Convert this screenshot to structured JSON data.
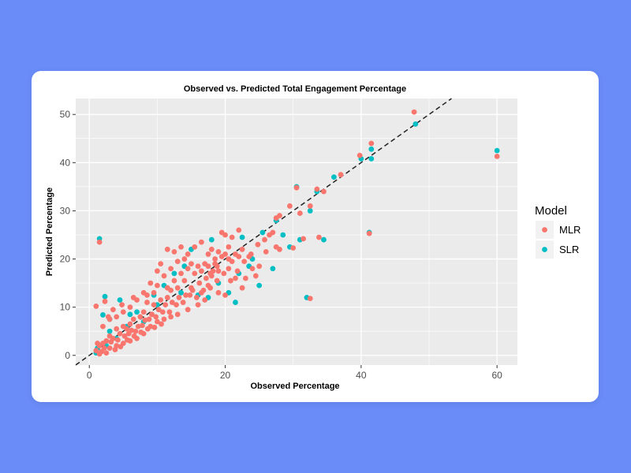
{
  "colors": {
    "page_background": "#6a8cf8",
    "card_background": "#ffffff",
    "panel_background": "#ebebeb",
    "grid": "#ffffff",
    "mlr": "#f8766d",
    "slr": "#00bfc4",
    "reference_line": "#222222"
  },
  "chart_data": {
    "type": "scatter",
    "title": "Observed vs. Predicted Total Engagement Percentage",
    "xlabel": "Observed Percentage",
    "ylabel": "Predicted Percentage",
    "xlim": [
      -2,
      63
    ],
    "ylim": [
      -2,
      53.3
    ],
    "x_ticks": [
      0,
      20,
      40,
      60
    ],
    "y_ticks": [
      0,
      10,
      20,
      30,
      40,
      50
    ],
    "grid": true,
    "legend_placement": "right",
    "legend_title": "Model",
    "reference_line": {
      "style": "dashed",
      "from": [
        -2,
        -2
      ],
      "to": [
        53.3,
        53.3
      ]
    },
    "series": [
      {
        "name": "SLR",
        "color": "#00bfc4",
        "points": [
          [
            1.5,
            24.2
          ],
          [
            2.3,
            12.2
          ],
          [
            4.5,
            11.5
          ],
          [
            1.2,
            1.5
          ],
          [
            2.0,
            8.4
          ],
          [
            3.0,
            7.5
          ],
          [
            5.5,
            6.0
          ],
          [
            7.0,
            9.0
          ],
          [
            9.5,
            12.5
          ],
          [
            11.0,
            14.5
          ],
          [
            13.5,
            13.0
          ],
          [
            16.0,
            12.5
          ],
          [
            17.5,
            12.0
          ],
          [
            19.0,
            15.0
          ],
          [
            20.5,
            13.0
          ],
          [
            21.5,
            11.0
          ],
          [
            22.0,
            17.0
          ],
          [
            23.5,
            18.5
          ],
          [
            25.0,
            14.5
          ],
          [
            25.5,
            25.5
          ],
          [
            27.5,
            28.0
          ],
          [
            28.5,
            25.0
          ],
          [
            30.5,
            35.0
          ],
          [
            31.0,
            24.0
          ],
          [
            32.5,
            30.0
          ],
          [
            33.5,
            34.0
          ],
          [
            34.5,
            24.0
          ],
          [
            36.0,
            37.0
          ],
          [
            40.0,
            40.8
          ],
          [
            41.5,
            42.8
          ],
          [
            41.5,
            40.8
          ],
          [
            41.2,
            25.5
          ],
          [
            60.0,
            42.5
          ],
          [
            48.0,
            48.0
          ],
          [
            18.0,
            24.0
          ],
          [
            15.0,
            22.0
          ],
          [
            12.5,
            17.0
          ],
          [
            10.0,
            10.5
          ],
          [
            8.0,
            7.0
          ],
          [
            6.0,
            8.5
          ],
          [
            4.0,
            3.5
          ],
          [
            3.0,
            5.0
          ],
          [
            2.5,
            2.0
          ],
          [
            1.0,
            0.5
          ],
          [
            29.5,
            22.5
          ],
          [
            27.0,
            18.0
          ],
          [
            24.0,
            20.0
          ],
          [
            22.5,
            24.5
          ],
          [
            32.0,
            12.0
          ],
          [
            14.0,
            18.5
          ]
        ]
      },
      {
        "name": "MLR",
        "color": "#f8766d",
        "points": [
          [
            1.5,
            23.5
          ],
          [
            2.3,
            11.2
          ],
          [
            1.0,
            10.2
          ],
          [
            47.8,
            50.5
          ],
          [
            60.0,
            41.3
          ],
          [
            41.2,
            25.3
          ],
          [
            41.5,
            44.0
          ],
          [
            39.8,
            41.5
          ],
          [
            30.5,
            34.8
          ],
          [
            32.5,
            31.0
          ],
          [
            33.5,
            34.5
          ],
          [
            34.5,
            34.0
          ],
          [
            37.0,
            37.5
          ],
          [
            31.0,
            29.5
          ],
          [
            29.5,
            31.0
          ],
          [
            30.0,
            22.3
          ],
          [
            31.5,
            24.2
          ],
          [
            33.8,
            24.5
          ],
          [
            28.0,
            29.0
          ],
          [
            27.5,
            28.5
          ],
          [
            26.5,
            25.0
          ],
          [
            27.0,
            25.5
          ],
          [
            25.0,
            18.5
          ],
          [
            23.5,
            20.5
          ],
          [
            22.0,
            26.0
          ],
          [
            21.0,
            24.5
          ],
          [
            20.5,
            22.5
          ],
          [
            19.5,
            25.5
          ],
          [
            20.0,
            25.0
          ],
          [
            24.5,
            16.5
          ],
          [
            22.5,
            14.0
          ],
          [
            21.5,
            16.0
          ],
          [
            18.5,
            20.0
          ],
          [
            17.5,
            21.0
          ],
          [
            16.5,
            23.5
          ],
          [
            15.5,
            22.5
          ],
          [
            14.5,
            21.0
          ],
          [
            13.5,
            22.5
          ],
          [
            12.5,
            21.5
          ],
          [
            11.5,
            22.0
          ],
          [
            10.0,
            17.5
          ],
          [
            10.5,
            19.0
          ],
          [
            16.5,
            13.0
          ],
          [
            17.5,
            14.5
          ],
          [
            18.0,
            16.5
          ],
          [
            19.0,
            17.5
          ],
          [
            15.0,
            14.0
          ],
          [
            14.0,
            15.5
          ],
          [
            13.0,
            14.0
          ],
          [
            12.0,
            13.5
          ],
          [
            11.5,
            12.0
          ],
          [
            10.5,
            11.5
          ],
          [
            9.5,
            10.5
          ],
          [
            8.5,
            11.0
          ],
          [
            8.0,
            9.0
          ],
          [
            7.5,
            8.0
          ],
          [
            6.5,
            7.5
          ],
          [
            6.0,
            6.5
          ],
          [
            5.5,
            5.5
          ],
          [
            5.0,
            6.0
          ],
          [
            4.5,
            4.5
          ],
          [
            4.0,
            5.5
          ],
          [
            3.5,
            3.5
          ],
          [
            3.0,
            4.0
          ],
          [
            2.5,
            3.0
          ],
          [
            2.0,
            2.5
          ],
          [
            1.5,
            2.0
          ],
          [
            1.0,
            1.0
          ],
          [
            1.2,
            2.5
          ],
          [
            1.8,
            0.8
          ],
          [
            2.2,
            1.5
          ],
          [
            3.2,
            2.8
          ],
          [
            4.2,
            3.2
          ],
          [
            5.2,
            4.0
          ],
          [
            6.2,
            5.2
          ],
          [
            7.2,
            6.0
          ],
          [
            8.2,
            7.3
          ],
          [
            9.2,
            8.5
          ],
          [
            10.2,
            9.5
          ],
          [
            11.2,
            10.5
          ],
          [
            12.2,
            11.0
          ],
          [
            13.2,
            12.0
          ],
          [
            14.2,
            12.5
          ],
          [
            15.2,
            13.5
          ],
          [
            16.2,
            15.0
          ],
          [
            17.2,
            16.0
          ],
          [
            18.2,
            17.5
          ],
          [
            9.0,
            15.0
          ],
          [
            8.0,
            13.0
          ],
          [
            7.0,
            11.5
          ],
          [
            6.0,
            10.0
          ],
          [
            5.0,
            9.0
          ],
          [
            4.0,
            8.0
          ],
          [
            3.0,
            7.5
          ],
          [
            2.0,
            6.0
          ],
          [
            3.5,
            9.5
          ],
          [
            2.8,
            8.0
          ],
          [
            4.8,
            10.5
          ],
          [
            6.5,
            12.0
          ],
          [
            8.5,
            12.5
          ],
          [
            5.8,
            4.5
          ],
          [
            6.8,
            5.0
          ],
          [
            7.8,
            6.2
          ],
          [
            8.8,
            7.5
          ],
          [
            9.8,
            8.0
          ],
          [
            10.8,
            9.0
          ],
          [
            11.8,
            9.0
          ],
          [
            12.8,
            10.5
          ],
          [
            13.8,
            11.0
          ],
          [
            14.8,
            12.5
          ],
          [
            15.8,
            12.0
          ],
          [
            16.8,
            13.5
          ],
          [
            17.8,
            14.0
          ],
          [
            18.8,
            15.5
          ],
          [
            19.8,
            17.0
          ],
          [
            20.8,
            15.5
          ],
          [
            21.8,
            17.5
          ],
          [
            22.8,
            19.5
          ],
          [
            23.8,
            21.0
          ],
          [
            24.8,
            23.0
          ],
          [
            25.8,
            24.0
          ],
          [
            12.0,
            18.0
          ],
          [
            13.0,
            19.5
          ],
          [
            14.0,
            20.0
          ],
          [
            15.0,
            19.0
          ],
          [
            16.0,
            18.5
          ],
          [
            17.0,
            19.0
          ],
          [
            11.0,
            16.5
          ],
          [
            10.0,
            14.5
          ],
          [
            9.5,
            13.0
          ],
          [
            11.5,
            14.0
          ],
          [
            12.5,
            15.5
          ],
          [
            13.5,
            17.0
          ],
          [
            14.5,
            18.0
          ],
          [
            15.5,
            17.0
          ],
          [
            16.5,
            17.5
          ],
          [
            17.5,
            18.5
          ],
          [
            18.5,
            19.0
          ],
          [
            19.5,
            20.5
          ],
          [
            20.5,
            20.0
          ],
          [
            21.5,
            21.0
          ],
          [
            22.5,
            22.0
          ],
          [
            23.0,
            16.0
          ],
          [
            24.0,
            18.0
          ],
          [
            19.0,
            13.0
          ],
          [
            20.0,
            12.5
          ],
          [
            17.0,
            11.5
          ],
          [
            16.0,
            10.5
          ],
          [
            14.5,
            9.5
          ],
          [
            13.0,
            8.5
          ],
          [
            12.0,
            8.0
          ],
          [
            11.0,
            7.5
          ],
          [
            10.0,
            7.0
          ],
          [
            9.0,
            6.0
          ],
          [
            8.0,
            4.5
          ],
          [
            7.0,
            3.5
          ],
          [
            6.0,
            3.0
          ],
          [
            5.0,
            2.5
          ],
          [
            4.0,
            2.0
          ],
          [
            3.0,
            1.5
          ],
          [
            2.5,
            0.5
          ],
          [
            1.5,
            0.3
          ],
          [
            3.8,
            1.2
          ],
          [
            4.6,
            1.8
          ],
          [
            5.6,
            3.2
          ],
          [
            6.6,
            4.0
          ],
          [
            7.6,
            4.8
          ],
          [
            8.6,
            5.5
          ],
          [
            9.6,
            5.8
          ],
          [
            10.6,
            6.5
          ],
          [
            32.5,
            11.8
          ],
          [
            18.0,
            22.0
          ],
          [
            19.0,
            21.5
          ],
          [
            20.0,
            21.0
          ],
          [
            21.0,
            19.5
          ],
          [
            22.0,
            20.5
          ],
          [
            26.0,
            21.5
          ],
          [
            28.0,
            22.0
          ],
          [
            27.5,
            22.5
          ],
          [
            20.5,
            18.0
          ],
          [
            18.8,
            18.5
          ],
          [
            17.8,
            17.0
          ]
        ]
      }
    ]
  }
}
